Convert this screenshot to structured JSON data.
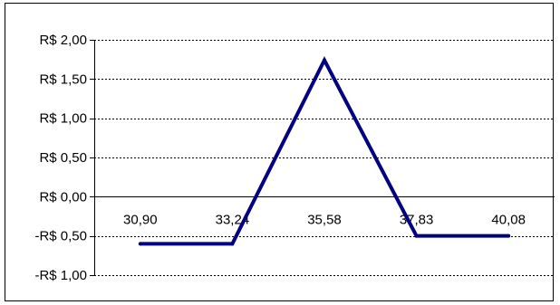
{
  "chart_data": {
    "type": "line",
    "title": "",
    "xlabel": "",
    "ylabel": "",
    "categories": [
      "30,90",
      "33,24",
      "35,58",
      "37,83",
      "40,08"
    ],
    "series": [
      {
        "values": [
          -0.6,
          -0.6,
          1.74,
          -0.5,
          -0.5
        ]
      }
    ],
    "ylim": [
      -1.0,
      2.0
    ],
    "y_ticks": [
      {
        "value": 2.0,
        "label": "R$ 2,00"
      },
      {
        "value": 1.5,
        "label": "R$ 1,50"
      },
      {
        "value": 1.0,
        "label": "R$ 1,00"
      },
      {
        "value": 0.5,
        "label": "R$ 0,50"
      },
      {
        "value": 0.0,
        "label": "R$ 0,00"
      },
      {
        "value": -0.5,
        "label": "-R$ 0,50"
      },
      {
        "value": -1.0,
        "label": "-R$ 1,00"
      }
    ],
    "grid": true,
    "legend": "none",
    "line_color": "#000080",
    "grid_color": "#000000"
  }
}
